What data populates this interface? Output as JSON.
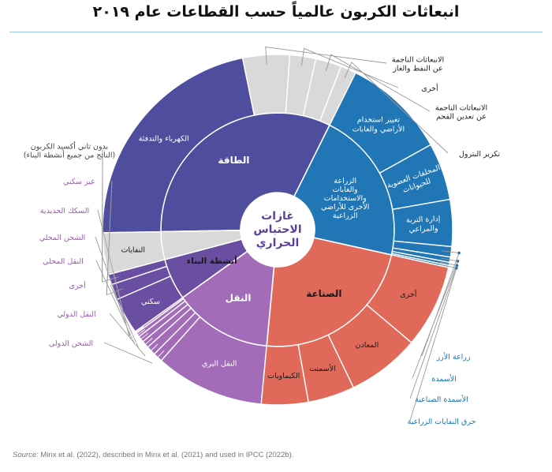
{
  "title": "انبعاثات الكربون عالمياً حسب القطاعات عام ٢٠١٩",
  "source": {
    "label": "Source:",
    "text": "Minx et al. (2022), described in Minx et al. (2021) and used in IPCC (2022b)."
  },
  "center_label": [
    "غازات",
    "الاحتباس",
    "الحراري"
  ],
  "colors": {
    "energy": "#4f4e9e",
    "afolu": "#2176b5",
    "industry": "#e0695a",
    "transport": "#a36cb8",
    "buildings": "#6a4ea2",
    "gray": "#d9d9d9",
    "transport_label": "#a05ab5",
    "afolu_label": "#2176b5"
  },
  "chart_data": {
    "type": "sunburst",
    "inner": [
      {
        "key": "energy",
        "label": "الطاقة",
        "value": 34
      },
      {
        "key": "afolu",
        "label": "الزراعة والغابات والاستخدامات الأخرى للأراضي الزراعية",
        "value": 22
      },
      {
        "key": "industry",
        "label": "الصناعة",
        "value": 24
      },
      {
        "key": "transport",
        "label": "النقل",
        "value": 15
      },
      {
        "key": "buildings",
        "label": "أنشطة البناء",
        "value": 6
      }
    ],
    "outer": [
      {
        "parent": "energy",
        "label": "الكهرباء والتدفئة",
        "value": 23.0
      },
      {
        "parent": "energy",
        "label": "الانبعاثات الناجمة عن النفط والغاز",
        "value": 4.5
      },
      {
        "parent": "energy",
        "label": "أخرى",
        "value": 2.5
      },
      {
        "parent": "energy",
        "label": "الانبعاثات الناجمة عن تعدين الفحم",
        "value": 2.5
      },
      {
        "parent": "energy",
        "label": "تكرير البترول",
        "value": 1.5
      },
      {
        "parent": "afolu",
        "label": "تغيير استخدام الأراضي والغابات",
        "value": 10.0
      },
      {
        "parent": "afolu",
        "label": "المخلفات العضوية للحيوانات",
        "value": 5.5
      },
      {
        "parent": "afolu",
        "label": "إدارة التربة والمراعي",
        "value": 4.5
      },
      {
        "parent": "afolu",
        "label": "زراعة الأرز",
        "value": 1.0
      },
      {
        "parent": "afolu",
        "label": "الأسمدة",
        "value": 0.5
      },
      {
        "parent": "afolu",
        "label": "الأسمدة الصناعية",
        "value": 0.3
      },
      {
        "parent": "afolu",
        "label": "حرق النفايات الزراعية",
        "value": 0.2
      },
      {
        "parent": "industry",
        "label": "أخرى",
        "value": 8.0
      },
      {
        "parent": "industry",
        "label": "المعادن",
        "value": 7.0
      },
      {
        "parent": "industry",
        "label": "الأسمنت",
        "value": 4.5
      },
      {
        "parent": "industry",
        "label": "الكيماويات",
        "value": 4.5
      },
      {
        "parent": "transport",
        "label": "النقل البري",
        "value": 10.5
      },
      {
        "parent": "transport",
        "label": "الشحن الدولي",
        "value": 0.9
      },
      {
        "parent": "transport",
        "label": "النقل الدولي",
        "value": 0.9
      },
      {
        "parent": "transport",
        "label": "أخرى",
        "value": 0.7
      },
      {
        "parent": "transport",
        "label": "النقل المحلي",
        "value": 0.6
      },
      {
        "parent": "transport",
        "label": "الشحن المحلي",
        "value": 0.4
      },
      {
        "parent": "transport",
        "label": "السكك الحديدية",
        "value": 0.2
      },
      {
        "parent": "buildings",
        "label": "سكني",
        "value": 3.5
      },
      {
        "parent": "buildings",
        "label": "غير سكني",
        "value": 1.5
      },
      {
        "parent": "buildings",
        "label": "بدون ثاني أكسيد الكربون (الناتج من جميع أنشطة البناء)",
        "value": 1.0
      },
      {
        "parent": "waste",
        "label": "النفايات",
        "value": 4.0
      }
    ]
  }
}
